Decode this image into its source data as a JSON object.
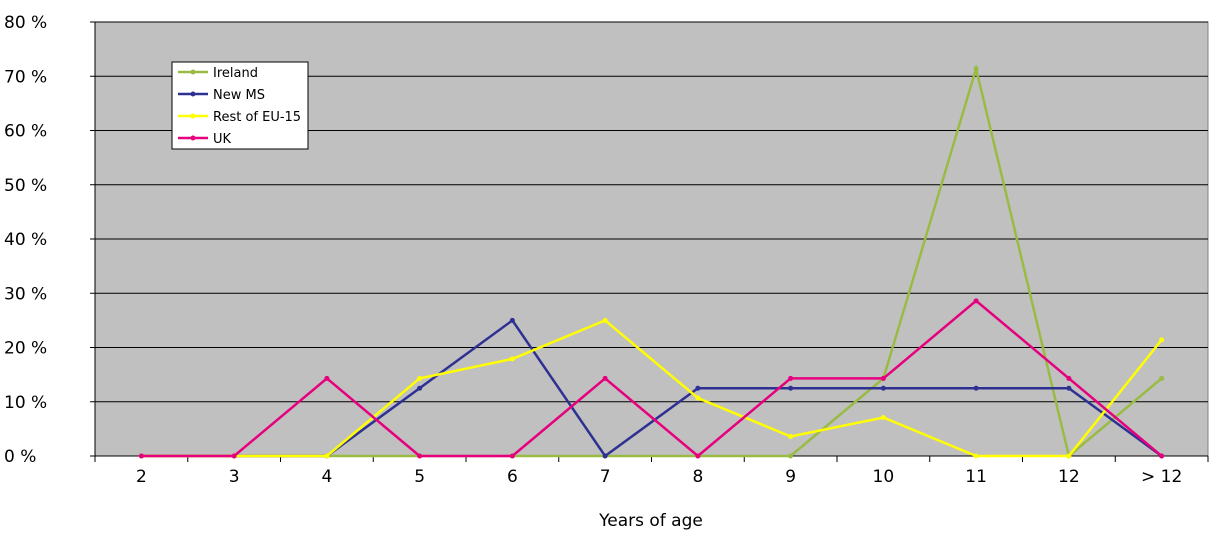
{
  "chart_data": {
    "type": "line",
    "xlabel": "Years of age",
    "categories": [
      "2",
      "3",
      "4",
      "5",
      "6",
      "7",
      "8",
      "9",
      "10",
      "11",
      "12",
      "> 12"
    ],
    "ylim": [
      0,
      80
    ],
    "yticks": [
      0,
      10,
      20,
      30,
      40,
      50,
      60,
      70,
      80
    ],
    "y_tick_suffix": " %",
    "grid": "horizontal",
    "legend_placement": "top-left",
    "plot_background": "#c0c0c0",
    "series": [
      {
        "name": "Ireland",
        "color": "#99bb44",
        "values": [
          0,
          0,
          0,
          0,
          0,
          0,
          0,
          0,
          14.3,
          71.4,
          0,
          14.3
        ]
      },
      {
        "name": "New MS",
        "color": "#2e3192",
        "values": [
          0,
          0,
          0,
          12.5,
          25,
          0,
          12.5,
          12.5,
          12.5,
          12.5,
          12.5,
          0
        ]
      },
      {
        "name": "Rest of EU-15",
        "color": "#ffff00",
        "values": [
          0,
          0,
          0,
          14.3,
          17.9,
          25,
          10.7,
          3.6,
          7.1,
          0,
          0,
          21.4
        ]
      },
      {
        "name": "UK",
        "color": "#e6007e",
        "values": [
          0,
          0,
          14.3,
          0,
          0,
          14.3,
          0,
          14.3,
          14.3,
          28.6,
          14.3,
          0
        ]
      }
    ]
  }
}
